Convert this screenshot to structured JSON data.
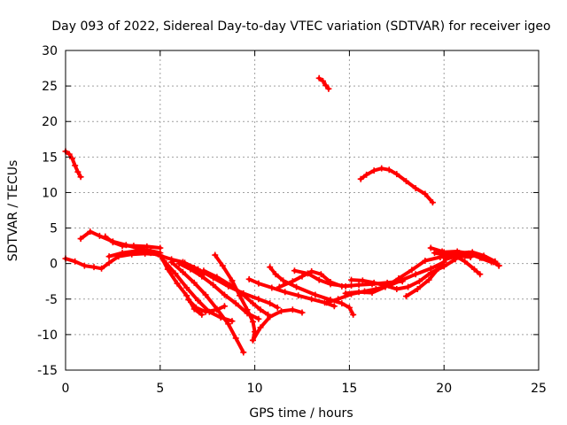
{
  "chart_data": {
    "type": "scatter",
    "title": "Day 093 of 2022, Sidereal Day-to-day VTEC variation (SDTVAR) for receiver igeo",
    "xlabel": "GPS time / hours",
    "ylabel": "SDTVAR / TECUs",
    "xlim": [
      0,
      25
    ],
    "ylim": [
      -15,
      30
    ],
    "xticks": [
      0,
      5,
      10,
      15,
      20,
      25
    ],
    "yticks": [
      -15,
      -10,
      -5,
      0,
      5,
      10,
      15,
      20,
      25,
      30
    ],
    "grid": true,
    "marker_color": "#ff0000",
    "series": [
      {
        "name": "arc-1",
        "points": [
          [
            0.0,
            15.8
          ],
          [
            0.2,
            15.4
          ],
          [
            0.35,
            14.8
          ],
          [
            0.5,
            13.8
          ],
          [
            0.65,
            12.9
          ],
          [
            0.8,
            12.2
          ]
        ]
      },
      {
        "name": "arc-2",
        "points": [
          [
            13.4,
            26.1
          ],
          [
            13.6,
            25.7
          ],
          [
            13.75,
            25.1
          ],
          [
            13.9,
            24.6
          ]
        ]
      },
      {
        "name": "arc-3",
        "points": [
          [
            15.6,
            11.9
          ],
          [
            15.9,
            12.5
          ],
          [
            16.3,
            13.1
          ],
          [
            16.7,
            13.4
          ],
          [
            17.1,
            13.2
          ],
          [
            17.5,
            12.6
          ],
          [
            18.0,
            11.6
          ],
          [
            18.5,
            10.6
          ],
          [
            19.0,
            9.8
          ],
          [
            19.4,
            8.6
          ]
        ]
      },
      {
        "name": "arc-4",
        "points": [
          [
            0.0,
            0.7
          ],
          [
            0.5,
            0.3
          ],
          [
            1.0,
            -0.3
          ],
          [
            1.5,
            -0.5
          ],
          [
            1.9,
            -0.7
          ],
          [
            2.3,
            0.1
          ],
          [
            2.8,
            1.0
          ],
          [
            3.5,
            1.3
          ],
          [
            4.2,
            1.4
          ],
          [
            4.9,
            1.3
          ]
        ]
      },
      {
        "name": "arc-5",
        "points": [
          [
            0.8,
            3.5
          ],
          [
            1.3,
            4.5
          ],
          [
            1.8,
            3.9
          ],
          [
            2.5,
            3.1
          ],
          [
            3.2,
            2.6
          ],
          [
            3.9,
            2.1
          ],
          [
            4.5,
            1.8
          ],
          [
            5.0,
            1.5
          ]
        ]
      },
      {
        "name": "arc-6",
        "points": [
          [
            2.1,
            3.8
          ],
          [
            2.5,
            3.0
          ],
          [
            3.0,
            2.5
          ],
          [
            3.6,
            2.5
          ],
          [
            4.3,
            2.4
          ],
          [
            5.0,
            2.2
          ]
        ]
      },
      {
        "name": "arc-7",
        "points": [
          [
            2.3,
            1.0
          ],
          [
            3.0,
            1.5
          ],
          [
            3.8,
            1.8
          ],
          [
            4.5,
            1.5
          ],
          [
            5.0,
            1.1
          ],
          [
            5.6,
            0.6
          ],
          [
            6.2,
            0.2
          ],
          [
            6.8,
            -0.6
          ],
          [
            7.3,
            -1.5
          ]
        ]
      },
      {
        "name": "arc-8",
        "points": [
          [
            5.0,
            1.2
          ],
          [
            5.4,
            -0.8
          ],
          [
            5.9,
            -2.8
          ],
          [
            6.4,
            -4.5
          ],
          [
            6.8,
            -6.4
          ],
          [
            7.2,
            -7.2
          ]
        ]
      },
      {
        "name": "arc-9",
        "points": [
          [
            5.2,
            0.4
          ],
          [
            5.8,
            -1.4
          ],
          [
            6.4,
            -3.4
          ],
          [
            7.0,
            -5.2
          ],
          [
            7.6,
            -6.8
          ],
          [
            8.2,
            -7.6
          ],
          [
            8.8,
            -8.1
          ]
        ]
      },
      {
        "name": "arc-10",
        "points": [
          [
            5.6,
            0.2
          ],
          [
            6.2,
            -1.2
          ],
          [
            6.8,
            -2.7
          ],
          [
            7.4,
            -4.4
          ],
          [
            8.0,
            -6.4
          ],
          [
            8.6,
            -8.5
          ],
          [
            9.0,
            -10.5
          ],
          [
            9.4,
            -12.5
          ]
        ]
      },
      {
        "name": "arc-11",
        "points": [
          [
            6.0,
            0.0
          ],
          [
            6.6,
            -0.8
          ],
          [
            7.2,
            -1.8
          ],
          [
            7.8,
            -3.0
          ],
          [
            8.4,
            -4.4
          ],
          [
            9.0,
            -5.6
          ],
          [
            9.6,
            -7.0
          ],
          [
            10.2,
            -7.8
          ]
        ]
      },
      {
        "name": "arc-12",
        "points": [
          [
            6.5,
            -5.1
          ],
          [
            6.9,
            -6.2
          ],
          [
            7.4,
            -6.8
          ],
          [
            8.0,
            -6.5
          ],
          [
            8.4,
            -6.0
          ]
        ]
      },
      {
        "name": "arc-13",
        "points": [
          [
            7.9,
            1.2
          ],
          [
            8.3,
            -0.3
          ],
          [
            8.8,
            -2.4
          ],
          [
            9.2,
            -4.5
          ],
          [
            9.6,
            -6.5
          ],
          [
            9.9,
            -8.2
          ],
          [
            10.0,
            -9.6
          ],
          [
            9.9,
            -10.8
          ]
        ]
      },
      {
        "name": "arc-14",
        "points": [
          [
            6.3,
            0.1
          ],
          [
            7.0,
            -0.8
          ],
          [
            7.8,
            -2.0
          ],
          [
            8.6,
            -3.2
          ],
          [
            9.4,
            -4.2
          ],
          [
            10.2,
            -5.0
          ],
          [
            10.8,
            -5.6
          ],
          [
            11.2,
            -6.2
          ]
        ]
      },
      {
        "name": "arc-15",
        "points": [
          [
            7.3,
            -1.0
          ],
          [
            8.0,
            -1.9
          ],
          [
            8.7,
            -3.0
          ],
          [
            9.3,
            -4.2
          ],
          [
            9.9,
            -5.6
          ],
          [
            10.3,
            -6.5
          ],
          [
            10.7,
            -7.2
          ]
        ]
      },
      {
        "name": "arc-16",
        "points": [
          [
            9.9,
            -10.8
          ],
          [
            10.3,
            -9.0
          ],
          [
            10.8,
            -7.5
          ],
          [
            11.4,
            -6.7
          ],
          [
            12.0,
            -6.5
          ],
          [
            12.5,
            -6.9
          ]
        ]
      },
      {
        "name": "arc-17",
        "points": [
          [
            9.7,
            -2.2
          ],
          [
            10.2,
            -2.8
          ],
          [
            10.9,
            -3.4
          ],
          [
            11.6,
            -4.0
          ],
          [
            12.3,
            -4.5
          ],
          [
            13.0,
            -5.0
          ],
          [
            13.7,
            -5.5
          ],
          [
            14.2,
            -6.0
          ]
        ]
      },
      {
        "name": "arc-18",
        "points": [
          [
            10.8,
            -0.5
          ],
          [
            11.1,
            -1.5
          ],
          [
            11.5,
            -2.4
          ],
          [
            12.2,
            -3.3
          ],
          [
            13.2,
            -4.4
          ],
          [
            14.0,
            -5.1
          ],
          [
            14.6,
            -5.6
          ],
          [
            15.0,
            -6.2
          ],
          [
            15.2,
            -7.2
          ]
        ]
      },
      {
        "name": "arc-19",
        "points": [
          [
            11.3,
            -3.3
          ],
          [
            12.0,
            -2.5
          ],
          [
            12.5,
            -1.8
          ],
          [
            13.0,
            -1.1
          ],
          [
            13.5,
            -1.5
          ],
          [
            14.0,
            -2.6
          ],
          [
            14.6,
            -3.2
          ],
          [
            15.1,
            -3.1
          ]
        ]
      },
      {
        "name": "arc-20",
        "points": [
          [
            12.1,
            -1.0
          ],
          [
            12.8,
            -1.4
          ],
          [
            13.4,
            -2.3
          ],
          [
            14.0,
            -2.9
          ],
          [
            14.8,
            -3.2
          ],
          [
            15.5,
            -3.0
          ],
          [
            16.2,
            -2.9
          ],
          [
            17.0,
            -2.7
          ],
          [
            17.8,
            -2.5
          ]
        ]
      },
      {
        "name": "arc-21",
        "points": [
          [
            15.1,
            -2.3
          ],
          [
            15.7,
            -2.4
          ],
          [
            16.3,
            -2.7
          ],
          [
            16.9,
            -3.1
          ],
          [
            17.5,
            -3.6
          ],
          [
            18.1,
            -3.3
          ],
          [
            18.7,
            -2.5
          ],
          [
            19.3,
            -1.3
          ],
          [
            20.0,
            -0.4
          ],
          [
            20.6,
            0.6
          ]
        ]
      },
      {
        "name": "arc-22",
        "points": [
          [
            13.8,
            -5.5
          ],
          [
            14.4,
            -5.0
          ],
          [
            15.1,
            -4.3
          ],
          [
            15.8,
            -3.9
          ],
          [
            16.4,
            -3.6
          ],
          [
            17.1,
            -3.1
          ],
          [
            17.8,
            -2.3
          ],
          [
            18.5,
            -1.5
          ],
          [
            19.3,
            -0.7
          ],
          [
            20.0,
            0.2
          ]
        ]
      },
      {
        "name": "arc-23",
        "points": [
          [
            14.8,
            -4.2
          ],
          [
            15.5,
            -4.0
          ],
          [
            16.2,
            -4.1
          ],
          [
            16.9,
            -3.3
          ],
          [
            17.6,
            -2.1
          ],
          [
            18.3,
            -0.9
          ],
          [
            19.0,
            0.4
          ],
          [
            19.8,
            0.9
          ],
          [
            20.6,
            1.1
          ],
          [
            21.4,
            0.9
          ]
        ]
      },
      {
        "name": "arc-24",
        "points": [
          [
            18.0,
            -4.6
          ],
          [
            18.6,
            -3.6
          ],
          [
            19.2,
            -2.3
          ],
          [
            19.7,
            -0.7
          ],
          [
            20.1,
            0.6
          ],
          [
            20.7,
            1.1
          ],
          [
            21.4,
            1.3
          ],
          [
            22.0,
            0.8
          ],
          [
            22.6,
            0.2
          ],
          [
            22.9,
            -0.3
          ]
        ]
      },
      {
        "name": "arc-25",
        "points": [
          [
            19.3,
            2.2
          ],
          [
            19.9,
            1.7
          ],
          [
            20.5,
            1.2
          ],
          [
            21.1,
            0.3
          ],
          [
            21.6,
            -0.8
          ],
          [
            21.9,
            -1.5
          ]
        ]
      },
      {
        "name": "arc-26",
        "points": [
          [
            19.5,
            1.5
          ],
          [
            20.1,
            1.2
          ],
          [
            20.8,
            1.5
          ],
          [
            21.5,
            1.6
          ],
          [
            22.1,
            1.1
          ],
          [
            22.7,
            0.3
          ],
          [
            22.9,
            -0.3
          ]
        ]
      },
      {
        "name": "arc-27",
        "points": [
          [
            20.0,
            1.6
          ],
          [
            20.7,
            1.7
          ],
          [
            21.3,
            1.4
          ],
          [
            21.9,
            0.8
          ],
          [
            22.5,
            0.2
          ]
        ]
      }
    ]
  }
}
